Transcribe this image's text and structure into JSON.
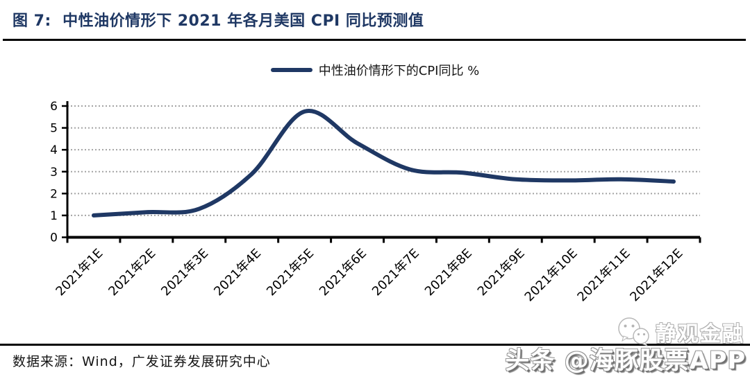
{
  "figure": {
    "title": "图 7:  中性油价情形下 2021 年各月美国 CPI 同比预测值",
    "source": "数据来源：Wind，广发证券发展研究中心"
  },
  "watermarks": {
    "wechat_name": "静观金融",
    "wechat_icon": "wechat-logo-icon",
    "toutiao": "头条 @海豚股票APP"
  },
  "colors": {
    "title_navy": "#1F3864",
    "line_navy": "#1F3864",
    "gridline_gray": "#A3A3A3",
    "axis_black": "#000000",
    "rule_black": "#000000"
  },
  "chart_data": {
    "type": "line",
    "title": "中性油价情形下 2021 年各月美国 CPI 同比预测值",
    "categories": [
      "2021年1E",
      "2021年2E",
      "2021年3E",
      "2021年4E",
      "2021年5E",
      "2021年6E",
      "2021年7E",
      "2021年8E",
      "2021年9E",
      "2021年10E",
      "2021年11E",
      "2021年12E"
    ],
    "series": [
      {
        "name": "中性油价情形下的CPI同比 %",
        "values": [
          1.0,
          1.15,
          1.3,
          2.9,
          5.75,
          4.3,
          3.1,
          2.95,
          2.65,
          2.6,
          2.65,
          2.55
        ]
      }
    ],
    "xlabel": "",
    "ylabel": "",
    "ylim": [
      0,
      6
    ],
    "yticks": [
      0,
      1,
      2,
      3,
      4,
      5,
      6
    ],
    "grid": "horizontal-dotted",
    "legend_position": "top-center",
    "smooth": true,
    "x_label_rotation": -45
  }
}
